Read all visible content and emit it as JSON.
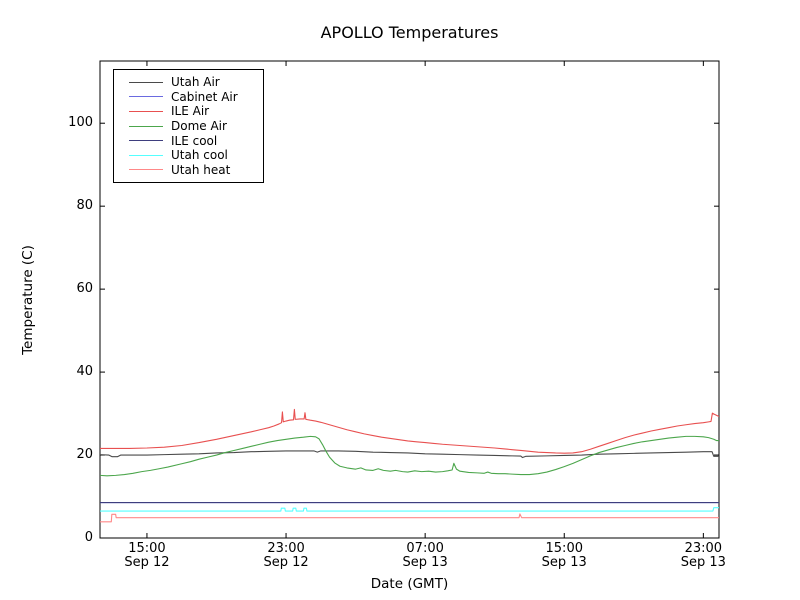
{
  "chart_data": {
    "type": "line",
    "title": "APOLLO Temperatures",
    "xlabel": "Date (GMT)",
    "ylabel": "Temperature (C)",
    "grid": false,
    "legend_position": "upper left",
    "ylim": [
      0,
      115
    ],
    "yticks": [
      0,
      20,
      40,
      60,
      80,
      100
    ],
    "x_unit": "hours after Sep 12 12:00 GMT",
    "xlim": [
      0.3,
      35.9
    ],
    "xticks": [
      {
        "t": 3,
        "time": "15:00",
        "date": "Sep 12"
      },
      {
        "t": 11,
        "time": "23:00",
        "date": "Sep 12"
      },
      {
        "t": 19,
        "time": "07:00",
        "date": "Sep 13"
      },
      {
        "t": 27,
        "time": "15:00",
        "date": "Sep 13"
      },
      {
        "t": 35,
        "time": "23:00",
        "date": "Sep 13"
      }
    ],
    "series": [
      {
        "name": "Utah Air",
        "color": "#4a4a4a",
        "points": [
          [
            0.3,
            20.1
          ],
          [
            0.8,
            20.0
          ],
          [
            1.0,
            19.6
          ],
          [
            1.3,
            19.6
          ],
          [
            1.5,
            20.0
          ],
          [
            2,
            20.0
          ],
          [
            3,
            20.0
          ],
          [
            4,
            20.1
          ],
          [
            5,
            20.2
          ],
          [
            6,
            20.3
          ],
          [
            7,
            20.5
          ],
          [
            8,
            20.6
          ],
          [
            9,
            20.8
          ],
          [
            10,
            20.9
          ],
          [
            11,
            21.0
          ],
          [
            12,
            21.0
          ],
          [
            12.6,
            21.0
          ],
          [
            12.8,
            20.7
          ],
          [
            13,
            21.0
          ],
          [
            14,
            21.0
          ],
          [
            15,
            20.9
          ],
          [
            16,
            20.7
          ],
          [
            17,
            20.6
          ],
          [
            18,
            20.5
          ],
          [
            19,
            20.3
          ],
          [
            20,
            20.2
          ],
          [
            21,
            20.1
          ],
          [
            22,
            20.0
          ],
          [
            23,
            19.9
          ],
          [
            24,
            19.8
          ],
          [
            24.5,
            19.75
          ],
          [
            24.6,
            19.4
          ],
          [
            24.8,
            19.7
          ],
          [
            26,
            19.8
          ],
          [
            27,
            19.9
          ],
          [
            28,
            20.0
          ],
          [
            29,
            20.2
          ],
          [
            30,
            20.3
          ],
          [
            31,
            20.4
          ],
          [
            32,
            20.5
          ],
          [
            33,
            20.6
          ],
          [
            34,
            20.7
          ],
          [
            35,
            20.8
          ],
          [
            35.5,
            20.8
          ],
          [
            35.6,
            19.7
          ],
          [
            35.9,
            19.7
          ]
        ]
      },
      {
        "name": "Cabinet Air",
        "color": "#6a6ae0",
        "points": [
          [
            0.3,
            8.55
          ],
          [
            35.9,
            8.55
          ]
        ]
      },
      {
        "name": "ILE Air",
        "color": "#e85050",
        "points": [
          [
            0.3,
            21.6
          ],
          [
            1,
            21.6
          ],
          [
            2,
            21.6
          ],
          [
            3,
            21.7
          ],
          [
            4,
            21.9
          ],
          [
            5,
            22.3
          ],
          [
            6,
            23.0
          ],
          [
            7,
            23.8
          ],
          [
            8,
            24.7
          ],
          [
            9,
            25.6
          ],
          [
            9.5,
            26.1
          ],
          [
            10,
            26.6
          ],
          [
            10.3,
            27.0
          ],
          [
            10.6,
            27.5
          ],
          [
            10.74,
            27.8
          ],
          [
            10.79,
            30.4
          ],
          [
            10.84,
            28.0
          ],
          [
            11,
            28.2
          ],
          [
            11.2,
            28.4
          ],
          [
            11.43,
            28.5
          ],
          [
            11.48,
            31.0
          ],
          [
            11.53,
            28.6
          ],
          [
            11.8,
            28.7
          ],
          [
            12.04,
            28.7
          ],
          [
            12.09,
            30.2
          ],
          [
            12.14,
            28.6
          ],
          [
            12.4,
            28.4
          ],
          [
            12.7,
            28.2
          ],
          [
            13,
            27.9
          ],
          [
            13.5,
            27.3
          ],
          [
            14,
            26.7
          ],
          [
            14.5,
            26.1
          ],
          [
            15,
            25.6
          ],
          [
            15.5,
            25.1
          ],
          [
            16,
            24.7
          ],
          [
            16.5,
            24.3
          ],
          [
            17,
            24.0
          ],
          [
            17.5,
            23.7
          ],
          [
            18,
            23.4
          ],
          [
            18.5,
            23.2
          ],
          [
            19,
            23.0
          ],
          [
            19.5,
            22.8
          ],
          [
            20,
            22.6
          ],
          [
            21,
            22.3
          ],
          [
            22,
            22.0
          ],
          [
            23,
            21.7
          ],
          [
            23.5,
            21.5
          ],
          [
            24,
            21.3
          ],
          [
            24.5,
            21.1
          ],
          [
            25,
            20.9
          ],
          [
            25.5,
            20.7
          ],
          [
            26,
            20.6
          ],
          [
            26.5,
            20.5
          ],
          [
            27,
            20.45
          ],
          [
            27.5,
            20.5
          ],
          [
            28,
            20.8
          ],
          [
            28.5,
            21.4
          ],
          [
            29,
            22.1
          ],
          [
            29.5,
            22.8
          ],
          [
            30,
            23.5
          ],
          [
            30.5,
            24.2
          ],
          [
            31,
            24.8
          ],
          [
            31.5,
            25.3
          ],
          [
            32,
            25.8
          ],
          [
            32.5,
            26.2
          ],
          [
            33,
            26.6
          ],
          [
            33.5,
            27.0
          ],
          [
            34,
            27.3
          ],
          [
            34.5,
            27.6
          ],
          [
            35,
            27.8
          ],
          [
            35.3,
            28.0
          ],
          [
            35.44,
            28.1
          ],
          [
            35.52,
            30.1
          ],
          [
            35.6,
            29.9
          ],
          [
            35.75,
            29.6
          ],
          [
            35.9,
            29.3
          ]
        ]
      },
      {
        "name": "Dome Air",
        "color": "#4ca64c",
        "points": [
          [
            0.3,
            15.1
          ],
          [
            0.7,
            15.0
          ],
          [
            1.2,
            15.1
          ],
          [
            1.7,
            15.3
          ],
          [
            2.2,
            15.6
          ],
          [
            2.7,
            16.0
          ],
          [
            3.2,
            16.3
          ],
          [
            3.7,
            16.7
          ],
          [
            4.2,
            17.1
          ],
          [
            5,
            17.9
          ],
          [
            5.5,
            18.4
          ],
          [
            6,
            19.0
          ],
          [
            6.5,
            19.5
          ],
          [
            7,
            20.0
          ],
          [
            7.5,
            20.6
          ],
          [
            8,
            21.1
          ],
          [
            8.5,
            21.6
          ],
          [
            9,
            22.1
          ],
          [
            9.5,
            22.6
          ],
          [
            10,
            23.1
          ],
          [
            10.5,
            23.5
          ],
          [
            11,
            23.8
          ],
          [
            11.5,
            24.1
          ],
          [
            12,
            24.3
          ],
          [
            12.4,
            24.5
          ],
          [
            12.7,
            24.4
          ],
          [
            12.9,
            23.9
          ],
          [
            13.1,
            22.5
          ],
          [
            13.3,
            20.9
          ],
          [
            13.5,
            19.5
          ],
          [
            13.8,
            18.1
          ],
          [
            14.1,
            17.3
          ],
          [
            14.5,
            16.9
          ],
          [
            15,
            16.6
          ],
          [
            15.3,
            16.9
          ],
          [
            15.6,
            16.4
          ],
          [
            16,
            16.3
          ],
          [
            16.3,
            16.7
          ],
          [
            16.6,
            16.3
          ],
          [
            17,
            16.1
          ],
          [
            17.3,
            16.3
          ],
          [
            17.7,
            16.0
          ],
          [
            18,
            15.9
          ],
          [
            18.4,
            16.2
          ],
          [
            18.8,
            16.0
          ],
          [
            19.2,
            16.1
          ],
          [
            19.6,
            15.9
          ],
          [
            20,
            16.0
          ],
          [
            20.3,
            16.2
          ],
          [
            20.55,
            16.4
          ],
          [
            20.65,
            18.0
          ],
          [
            20.8,
            16.6
          ],
          [
            21,
            16.1
          ],
          [
            21.5,
            15.8
          ],
          [
            22,
            15.7
          ],
          [
            22.4,
            15.6
          ],
          [
            22.6,
            15.9
          ],
          [
            22.8,
            15.6
          ],
          [
            23.2,
            15.5
          ],
          [
            23.6,
            15.5
          ],
          [
            24,
            15.4
          ],
          [
            24.5,
            15.3
          ],
          [
            25,
            15.3
          ],
          [
            25.5,
            15.5
          ],
          [
            26,
            15.9
          ],
          [
            26.5,
            16.5
          ],
          [
            27,
            17.2
          ],
          [
            27.5,
            18.0
          ],
          [
            28,
            18.9
          ],
          [
            28.5,
            19.8
          ],
          [
            29,
            20.6
          ],
          [
            29.5,
            21.2
          ],
          [
            30,
            21.8
          ],
          [
            30.5,
            22.3
          ],
          [
            31,
            22.8
          ],
          [
            31.5,
            23.2
          ],
          [
            32,
            23.5
          ],
          [
            32.5,
            23.8
          ],
          [
            33,
            24.1
          ],
          [
            33.5,
            24.3
          ],
          [
            34,
            24.5
          ],
          [
            34.5,
            24.5
          ],
          [
            35,
            24.4
          ],
          [
            35.3,
            24.2
          ],
          [
            35.6,
            23.8
          ],
          [
            35.75,
            23.5
          ],
          [
            35.9,
            23.5
          ]
        ]
      },
      {
        "name": "ILE cool",
        "color": "#3e3e7e",
        "points": [
          [
            0.3,
            8.55
          ],
          [
            35.9,
            8.55
          ]
        ]
      },
      {
        "name": "Utah cool",
        "color": "#55ffff",
        "points": [
          [
            0.3,
            6.5
          ],
          [
            10.7,
            6.5
          ],
          [
            10.73,
            7.2
          ],
          [
            10.93,
            7.2
          ],
          [
            10.96,
            6.5
          ],
          [
            11.38,
            6.5
          ],
          [
            11.41,
            7.2
          ],
          [
            11.56,
            7.2
          ],
          [
            11.59,
            6.5
          ],
          [
            12.0,
            6.5
          ],
          [
            12.03,
            7.2
          ],
          [
            12.17,
            7.2
          ],
          [
            12.2,
            6.5
          ],
          [
            35.55,
            6.5
          ],
          [
            35.6,
            7.3
          ],
          [
            35.9,
            7.3
          ]
        ]
      },
      {
        "name": "Utah heat",
        "color": "#ff8888",
        "points": [
          [
            0.3,
            3.9
          ],
          [
            0.95,
            3.9
          ],
          [
            0.98,
            5.7
          ],
          [
            1.2,
            5.7
          ],
          [
            1.23,
            4.9
          ],
          [
            24.4,
            4.9
          ],
          [
            24.45,
            5.8
          ],
          [
            24.55,
            4.9
          ],
          [
            35.9,
            4.9
          ]
        ]
      }
    ]
  }
}
